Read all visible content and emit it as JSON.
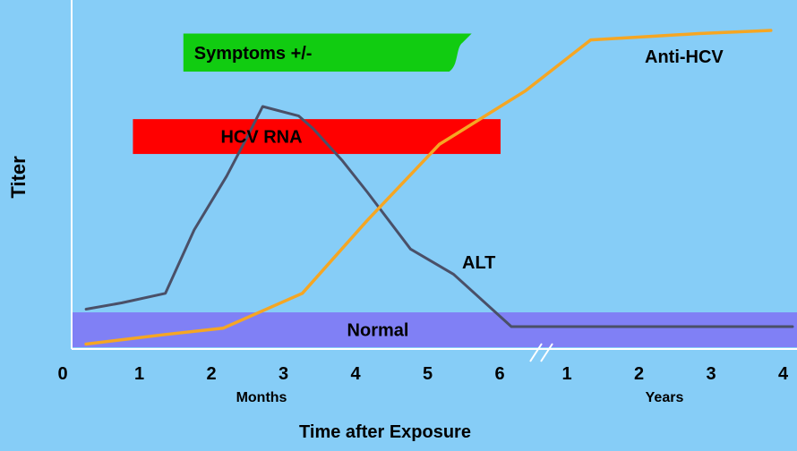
{
  "colors": {
    "background": "#86cdf7",
    "normal_band": "#8080f5",
    "rna_bar": "#ff0000",
    "symptoms_bar": "#11cc11",
    "alt_line": "#4a5068",
    "anti_hcv_line": "#f5a623",
    "axis": "#ffffff"
  },
  "chart_data": {
    "type": "line",
    "title": "",
    "xlabel": "Time after Exposure",
    "ylabel": "Titer",
    "x_axis": {
      "break_symbol": "//",
      "segments": [
        {
          "unit": "Months",
          "ticks": [
            "0",
            "1",
            "2",
            "3",
            "4",
            "5",
            "6"
          ]
        },
        {
          "unit": "Years",
          "ticks": [
            "1",
            "2",
            "3",
            "4"
          ]
        }
      ]
    },
    "y_range": [
      0,
      100
    ],
    "x_scale_note": "x in months for 0-6; years 1-4 plotted as continuation after the break",
    "series": [
      {
        "name": "ALT",
        "points": [
          {
            "x": 0.2,
            "y": 12
          },
          {
            "x": 0.7,
            "y": 14
          },
          {
            "x": 1.3,
            "y": 17
          },
          {
            "x": 1.7,
            "y": 37
          },
          {
            "x": 2.15,
            "y": 54
          },
          {
            "x": 2.45,
            "y": 67
          },
          {
            "x": 2.65,
            "y": 76
          },
          {
            "x": 3.15,
            "y": 73
          },
          {
            "x": 3.35,
            "y": 69
          },
          {
            "x": 3.75,
            "y": 59
          },
          {
            "x": 4.1,
            "y": 49
          },
          {
            "x": 4.7,
            "y": 31
          },
          {
            "x": 5.3,
            "y": 23
          },
          {
            "x": 6.1,
            "y": 6.5
          },
          {
            "x": 10,
            "y": 6.5
          }
        ]
      },
      {
        "name": "Anti-HCV",
        "points": [
          {
            "x": 0.2,
            "y": 1
          },
          {
            "x": 1.3,
            "y": 4
          },
          {
            "x": 2.1,
            "y": 6
          },
          {
            "x": 3.2,
            "y": 17
          },
          {
            "x": 4.1,
            "y": 40
          },
          {
            "x": 5.1,
            "y": 64
          },
          {
            "x": 6.3,
            "y": 81
          },
          {
            "x": 7.2,
            "y": 97
          },
          {
            "x": 8.7,
            "y": 99
          },
          {
            "x": 9.7,
            "y": 100
          }
        ]
      }
    ],
    "bands": [
      {
        "label": "Symptoms +/-",
        "x_start": 1.55,
        "x_end": 5.3,
        "y_low": 87,
        "y_high": 99
      },
      {
        "label": "HCV RNA",
        "x_start": 0.85,
        "x_end": 5.95,
        "y_low": 61,
        "y_high": 72
      },
      {
        "label": "Normal",
        "x_start": 0.1,
        "x_end": 10,
        "y_low": 0,
        "y_high": 11
      }
    ],
    "annotations": [
      {
        "text": "ALT",
        "series": "ALT"
      },
      {
        "text": "Anti-HCV",
        "series": "Anti-HCV"
      }
    ]
  }
}
